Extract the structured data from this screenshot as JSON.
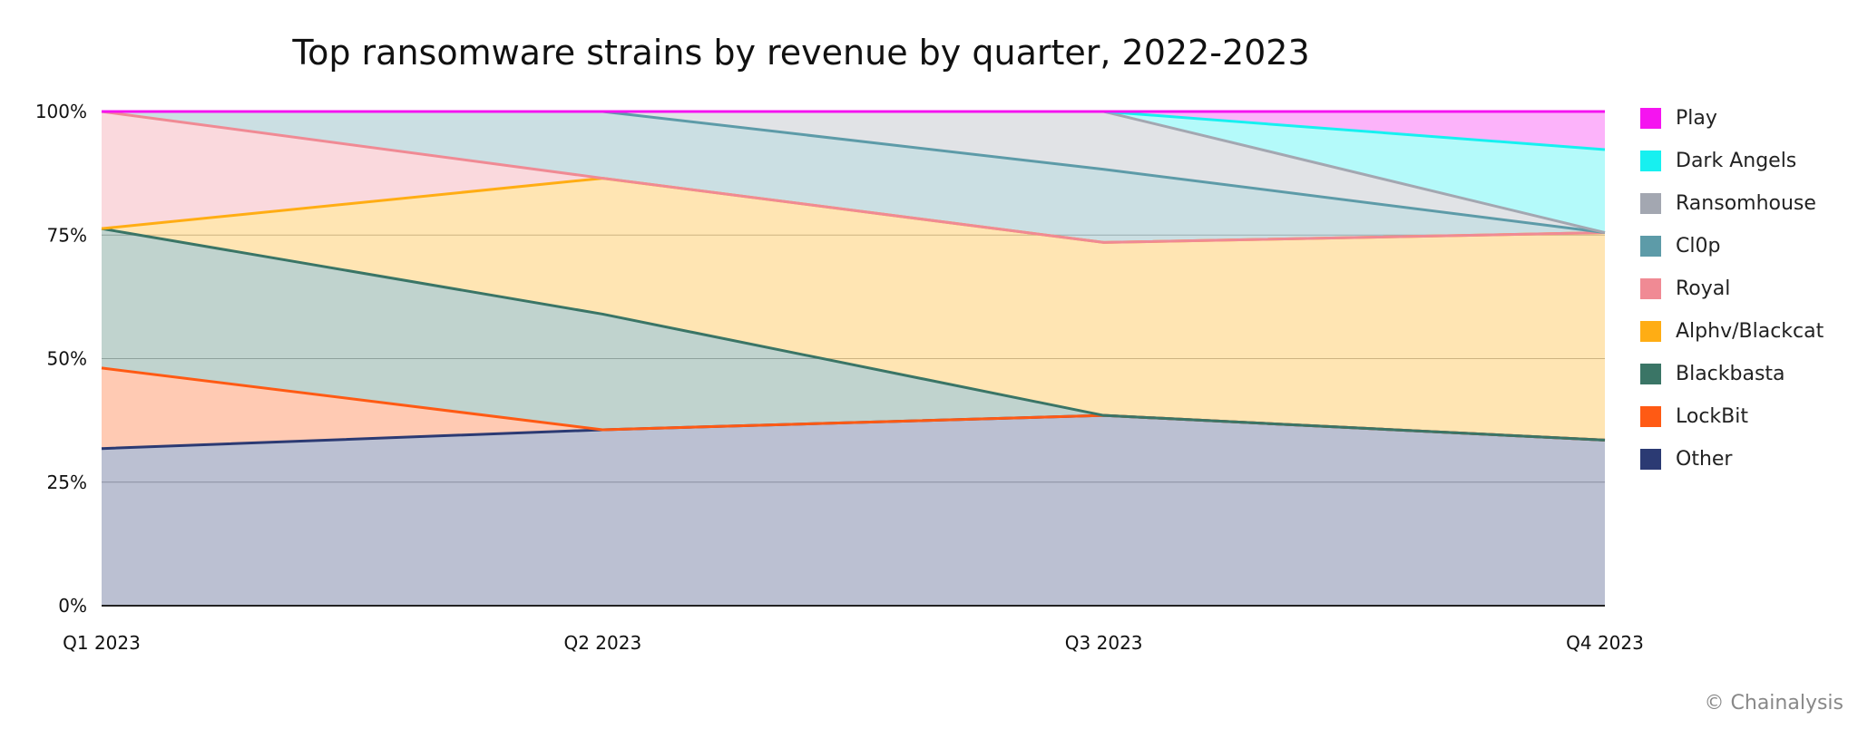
{
  "chart_data": {
    "type": "area",
    "stacked": true,
    "normalized": true,
    "title": "Top ransomware strains by revenue by quarter, 2022-2023",
    "xlabel": "",
    "ylabel": "",
    "categories": [
      "Q1 2023",
      "Q2 2023",
      "Q3 2023",
      "Q4 2023"
    ],
    "ylim": [
      0,
      100
    ],
    "yticks": [
      0,
      25,
      50,
      75,
      100
    ],
    "ytick_labels": [
      "0%",
      "25%",
      "50%",
      "75%",
      "100%"
    ],
    "grid": true,
    "legend_position": "right",
    "series": [
      {
        "name": "Other",
        "color": "#2b3a73",
        "values": [
          31.8,
          35.6,
          38.5,
          33.5
        ]
      },
      {
        "name": "LockBit",
        "color": "#ff5a14",
        "values": [
          16.3,
          0,
          0,
          0
        ]
      },
      {
        "name": "Blackbasta",
        "color": "#3a7566",
        "values": [
          28.2,
          23.4,
          0,
          0
        ]
      },
      {
        "name": "Alphv/Blackcat",
        "color": "#ffad14",
        "values": [
          0,
          27.5,
          35,
          42
        ]
      },
      {
        "name": "Royal",
        "color": "#f08a94",
        "values": [
          23.7,
          0,
          0,
          0
        ]
      },
      {
        "name": "Cl0p",
        "color": "#5d9ba8",
        "values": [
          0,
          13.5,
          14.8,
          0
        ]
      },
      {
        "name": "Ransomhouse",
        "color": "#a3a7b1",
        "values": [
          0,
          0,
          11.7,
          0
        ]
      },
      {
        "name": "Dark Angels",
        "color": "#17f0f0",
        "values": [
          0,
          0,
          0,
          16.8
        ]
      },
      {
        "name": "Play",
        "color": "#f514f0",
        "values": [
          0,
          0,
          0,
          7.7
        ]
      }
    ]
  },
  "legend_items": [
    "Play",
    "Dark Angels",
    "Ransomhouse",
    "Cl0p",
    "Royal",
    "Alphv/Blackcat",
    "Blackbasta",
    "LockBit",
    "Other"
  ],
  "credit": "© Chainalysis"
}
